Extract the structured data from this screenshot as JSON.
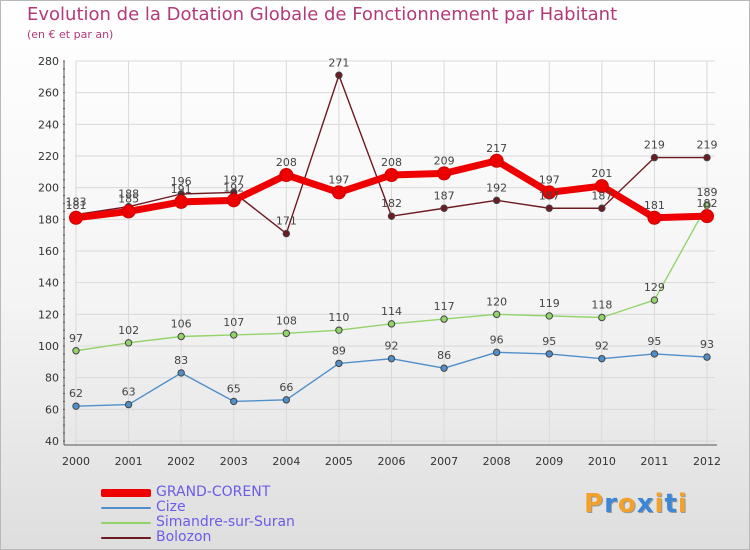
{
  "title": "Evolution de la Dotation Globale de Fonctionnement par Habitant",
  "subtitle": "(en € et par an)",
  "brand": {
    "text": "Proxiti"
  },
  "chart_data": {
    "type": "line",
    "x": [
      "2000",
      "2001",
      "2002",
      "2003",
      "2004",
      "2005",
      "2006",
      "2007",
      "2008",
      "2009",
      "2010",
      "2011",
      "2012"
    ],
    "ylim": [
      40,
      280
    ],
    "yticks": [
      40,
      60,
      80,
      100,
      120,
      140,
      160,
      180,
      200,
      220,
      240,
      260,
      280
    ],
    "grid": true,
    "legend_position": "bottom-left",
    "series": [
      {
        "name": "Bolozon",
        "color": "#6e1a22",
        "values": [
          183,
          188,
          196,
          197,
          171,
          271,
          182,
          187,
          192,
          187,
          187,
          219,
          219
        ]
      },
      {
        "name": "Cize",
        "color": "#4f8fcb",
        "values": [
          62,
          63,
          83,
          65,
          66,
          89,
          92,
          86,
          96,
          95,
          92,
          95,
          93
        ]
      },
      {
        "name": "Simandre-sur-Suran",
        "color": "#92d46a",
        "values": [
          97,
          102,
          106,
          107,
          108,
          110,
          114,
          117,
          120,
          119,
          118,
          129,
          189
        ]
      },
      {
        "name": "GRAND-CORENT",
        "color": "#ee0000",
        "values": [
          181,
          185,
          191,
          192,
          208,
          197,
          208,
          209,
          217,
          197,
          201,
          181,
          182
        ]
      }
    ],
    "legend_order": [
      "GRAND-CORENT",
      "Cize",
      "Simandre-sur-Suran",
      "Bolozon"
    ]
  }
}
